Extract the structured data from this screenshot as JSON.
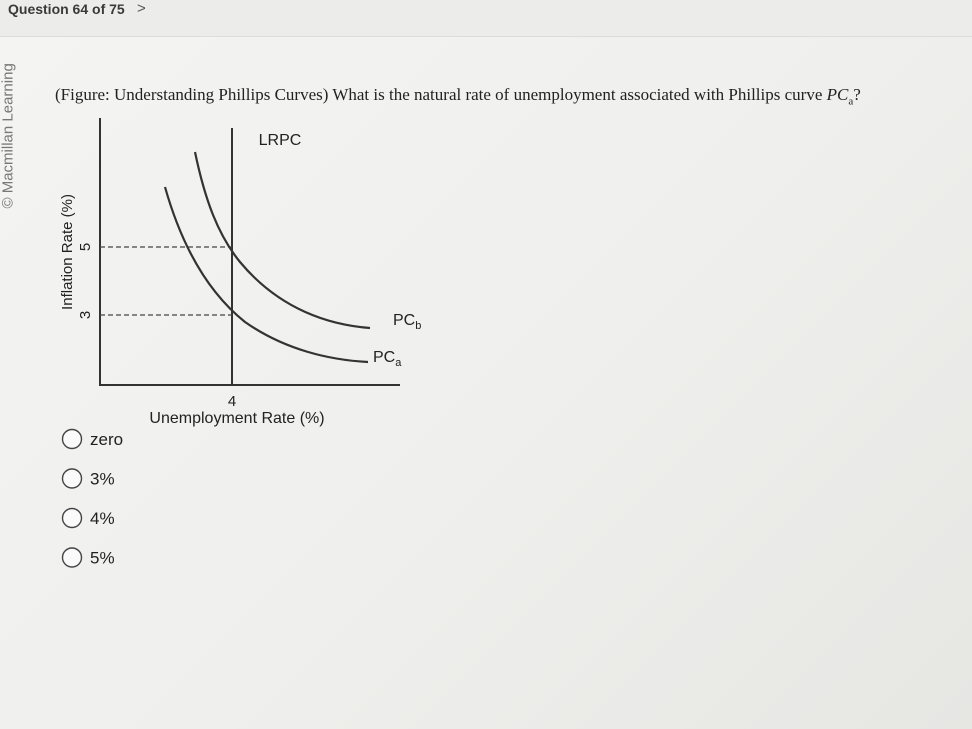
{
  "header": {
    "title": "Question 64 of 75"
  },
  "watermark": "© Macmillan Learning",
  "question": {
    "text": "(Figure: Understanding Phillips Curves) What is the natural rate of unemployment associated with Phillips curve",
    "curve": "PC",
    "curve_subscript": "a",
    "end": "?"
  },
  "figure": {
    "y_label": "Inflation Rate (%)",
    "x_label": "Unemployment Rate (%)",
    "y_ticks": [
      5,
      3
    ],
    "x_ticks": [
      4
    ],
    "lrpc_label": "LRPC",
    "curves": [
      {
        "label": "PC",
        "subscript": "b"
      },
      {
        "label": "PC",
        "subscript": "a"
      }
    ]
  },
  "options": [
    "zero",
    "3%",
    "4%",
    "5%"
  ]
}
